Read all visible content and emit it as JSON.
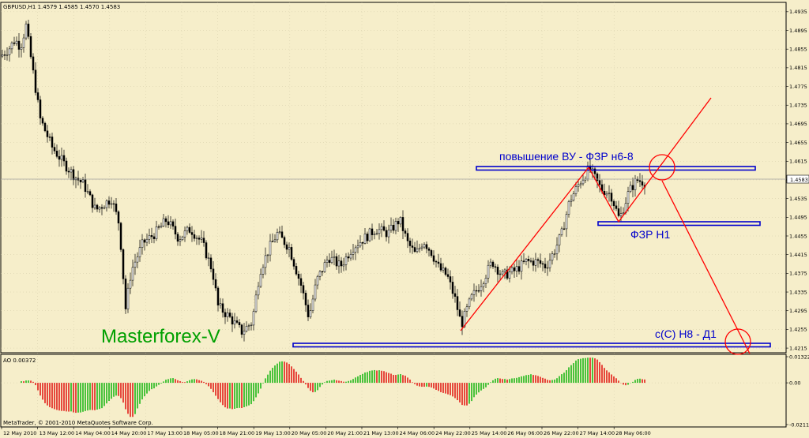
{
  "window": {
    "symbol_info": "GBPUSD,H1 1.4579 1.4585 1.4570 1.4583",
    "ao_info": "AO 0.00372",
    "copyright": "MetaTrader, © 2001-2010 MetaQuotes Software Corp."
  },
  "annotations": {
    "top_label": "повышение ВУ - ФЗР н6-8",
    "mid_label": "ФЗР  Н1",
    "bottom_label": "с(С) Н8 - Д1",
    "watermark": "Masterforex-V"
  },
  "colors": {
    "background": "#F6EECA",
    "bull_candle": "#FFFFFF",
    "bear_candle": "#000000",
    "trend_lines": "#FF0000",
    "zones": "#0000CC",
    "ao_up": "#00B000",
    "ao_down": "#E00000",
    "price_line": "#A0A0A0"
  },
  "chart_data": [
    {
      "type": "candlestick",
      "title": "GBPUSD,H1",
      "current_price": "1.4583",
      "ylim": [
        1.4205,
        1.4955
      ],
      "y_ticks": [
        "1.4935",
        "1.4895",
        "1.4855",
        "1.4815",
        "1.4775",
        "1.4735",
        "1.4695",
        "1.4655",
        "1.4615",
        "1.4575",
        "1.4535",
        "1.4495",
        "1.4455",
        "1.4415",
        "1.4375",
        "1.4335",
        "1.4295",
        "1.4255",
        "1.4215"
      ],
      "x_ticks": [
        "12 May 2010",
        "13 May 12:00",
        "14 May 04:00",
        "14 May 20:00",
        "17 May 13:00",
        "18 May 05:00",
        "18 May 21:00",
        "19 May 13:00",
        "20 May 05:00",
        "20 May 21:00",
        "21 May 13:00",
        "24 May 06:00",
        "24 May 22:00",
        "25 May 14:00",
        "26 May 06:00",
        "26 May 22:00",
        "27 May 14:00",
        "28 May 06:00"
      ],
      "waypoints": [
        [
          0,
          1.484
        ],
        [
          10,
          1.4855
        ],
        [
          18,
          1.4875
        ],
        [
          25,
          1.486
        ],
        [
          32,
          1.4905
        ],
        [
          40,
          1.4815
        ],
        [
          50,
          1.4705
        ],
        [
          65,
          1.4645
        ],
        [
          80,
          1.461
        ],
        [
          95,
          1.458
        ],
        [
          105,
          1.4565
        ],
        [
          120,
          1.451
        ],
        [
          140,
          1.4535
        ],
        [
          150,
          1.448
        ],
        [
          158,
          1.43
        ],
        [
          165,
          1.438
        ],
        [
          180,
          1.444
        ],
        [
          195,
          1.446
        ],
        [
          210,
          1.449
        ],
        [
          225,
          1.445
        ],
        [
          240,
          1.447
        ],
        [
          255,
          1.444
        ],
        [
          268,
          1.438
        ],
        [
          275,
          1.4305
        ],
        [
          290,
          1.428
        ],
        [
          305,
          1.425
        ],
        [
          318,
          1.427
        ],
        [
          328,
          1.438
        ],
        [
          340,
          1.443
        ],
        [
          350,
          1.446
        ],
        [
          365,
          1.443
        ],
        [
          380,
          1.435
        ],
        [
          390,
          1.428
        ],
        [
          400,
          1.436
        ],
        [
          415,
          1.441
        ],
        [
          430,
          1.439
        ],
        [
          445,
          1.443
        ],
        [
          460,
          1.445
        ],
        [
          475,
          1.447
        ],
        [
          490,
          1.446
        ],
        [
          505,
          1.449
        ],
        [
          515,
          1.444
        ],
        [
          525,
          1.4415
        ],
        [
          535,
          1.4445
        ],
        [
          545,
          1.442
        ],
        [
          555,
          1.4385
        ],
        [
          565,
          1.437
        ],
        [
          575,
          1.432
        ],
        [
          583,
          1.4265
        ],
        [
          595,
          1.432
        ],
        [
          610,
          1.436
        ],
        [
          622,
          1.44
        ],
        [
          635,
          1.437
        ],
        [
          650,
          1.438
        ],
        [
          665,
          1.44
        ],
        [
          678,
          1.44
        ],
        [
          690,
          1.439
        ],
        [
          700,
          1.442
        ],
        [
          710,
          1.446
        ],
        [
          720,
          1.453
        ],
        [
          733,
          1.457
        ],
        [
          745,
          1.46
        ],
        [
          760,
          1.4555
        ],
        [
          772,
          1.4545
        ],
        [
          783,
          1.449
        ],
        [
          795,
          1.455
        ],
        [
          805,
          1.4575
        ],
        [
          815,
          1.457
        ]
      ]
    },
    {
      "type": "bar",
      "title": "AO",
      "current_value": 0.00372,
      "y_ticks": [
        "0.01322",
        "0.00",
        "-0.02115"
      ],
      "ylim": [
        -0.02115,
        0.01322
      ]
    }
  ]
}
